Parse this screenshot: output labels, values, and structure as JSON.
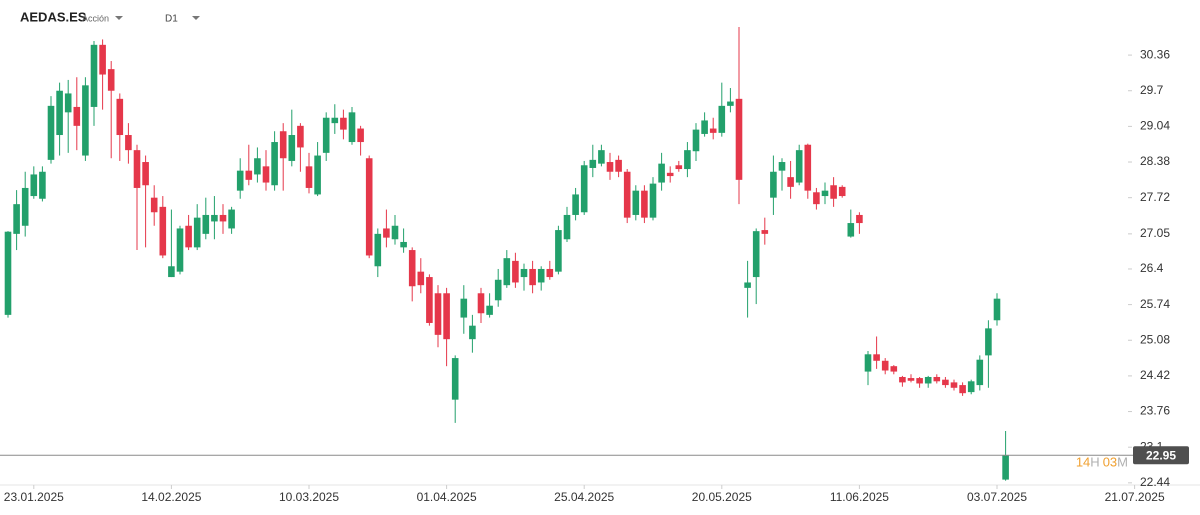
{
  "chart_data": {
    "type": "candlestick",
    "symbol": "AEDAS.ES",
    "instrument_type": "Acción",
    "timeframe": "D1",
    "countdown": [
      "14",
      "H",
      "03",
      "M"
    ],
    "last_price": 22.95,
    "up_color": "#22a06b",
    "down_color": "#e5374a",
    "categories": [
      null,
      null,
      null,
      "23.01.2025",
      null,
      null,
      null,
      null,
      null,
      null,
      null,
      null,
      null,
      null,
      null,
      null,
      null,
      null,
      null,
      "14.02.2025",
      null,
      null,
      null,
      null,
      null,
      null,
      null,
      null,
      null,
      null,
      null,
      null,
      null,
      null,
      null,
      "10.03.2025",
      null,
      null,
      null,
      null,
      null,
      null,
      null,
      null,
      null,
      null,
      null,
      null,
      null,
      null,
      null,
      "01.04.2025",
      null,
      null,
      null,
      null,
      null,
      null,
      null,
      null,
      null,
      null,
      null,
      null,
      null,
      null,
      null,
      "25.04.2025",
      null,
      null,
      null,
      null,
      null,
      null,
      null,
      null,
      null,
      null,
      null,
      null,
      null,
      null,
      null,
      "20.05.2025",
      null,
      null,
      null,
      null,
      null,
      null,
      null,
      null,
      null,
      null,
      null,
      null,
      null,
      null,
      null,
      "11.06.2025",
      null,
      null,
      null,
      null,
      null,
      null,
      null,
      null,
      null,
      null,
      null,
      null,
      null,
      null,
      null,
      "03.07.2025",
      null,
      null,
      null,
      null,
      null,
      null,
      null,
      null,
      null,
      null,
      null,
      null,
      null,
      null,
      null,
      "21.07.2025"
    ],
    "open": [
      25.55,
      27.05,
      27.2,
      27.75,
      27.7,
      28.42,
      28.88,
      29.3,
      29.4,
      28.5,
      29.4,
      30.55,
      30.1,
      29.55,
      28.88,
      28.6,
      28.38,
      27.72,
      27.55,
      26.25,
      26.35,
      27.2,
      26.8,
      27.05,
      27.28,
      27.4,
      27.15,
      27.85,
      28.22,
      28.15,
      28.3,
      27.95,
      28.95,
      28.4,
      29.05,
      28.3,
      27.78,
      28.55,
      29.1,
      29.2,
      28.75,
      29.0,
      28.45,
      26.45,
      27.15,
      26.95,
      26.8,
      26.75,
      26.35,
      26.25,
      25.95,
      25.95,
      23.98,
      25.5,
      25.1,
      25.95,
      25.55,
      25.82,
      26.1,
      26.55,
      26.25,
      26.4,
      26.15,
      26.4,
      26.35,
      26.95,
      27.4,
      27.45,
      28.27,
      28.35,
      28.38,
      28.42,
      28.2,
      27.4,
      27.85,
      27.35,
      28.0,
      28.18,
      28.32,
      28.25,
      28.58,
      28.9,
      29.0,
      28.92,
      29.42,
      29.55,
      26.05,
      26.25,
      27.12,
      27.72,
      28.22,
      28.1,
      28.0,
      28.7,
      27.82,
      27.75,
      27.95,
      27.92,
      27.0,
      27.4,
      24.5,
      24.82,
      24.7,
      24.6,
      24.4,
      24.38,
      24.38,
      24.28,
      24.4,
      24.35,
      24.3,
      24.25,
      24.12,
      24.25,
      24.8,
      25.45,
      22.5,
      null,
      null,
      null,
      null,
      null,
      null,
      null,
      null,
      null,
      null,
      null,
      null,
      null,
      null,
      null
    ],
    "high": [
      27.1,
      27.86,
      28.2,
      28.3,
      28.3,
      29.6,
      29.85,
      29.9,
      29.95,
      29.95,
      30.62,
      30.65,
      30.25,
      29.65,
      29.1,
      28.7,
      28.5,
      27.95,
      27.75,
      27.5,
      27.2,
      27.4,
      27.6,
      27.72,
      27.75,
      27.6,
      27.55,
      28.45,
      28.7,
      28.65,
      28.6,
      28.95,
      29.1,
      29.35,
      29.1,
      28.55,
      28.75,
      29.3,
      29.45,
      29.35,
      29.4,
      29.05,
      28.5,
      27.15,
      27.5,
      27.4,
      27.15,
      26.8,
      26.6,
      26.3,
      26.1,
      26.05,
      24.8,
      26.1,
      25.55,
      26.05,
      25.95,
      26.4,
      26.75,
      26.7,
      26.5,
      26.55,
      26.45,
      26.55,
      27.2,
      27.55,
      27.9,
      28.4,
      28.7,
      28.7,
      28.55,
      28.5,
      28.25,
      27.95,
      27.95,
      28.1,
      28.55,
      28.3,
      28.4,
      28.75,
      29.1,
      29.3,
      29.2,
      29.85,
      29.75,
      30.88,
      26.55,
      27.15,
      27.35,
      28.5,
      28.45,
      28.4,
      28.7,
      28.72,
      27.9,
      28.0,
      28.1,
      27.95,
      27.5,
      27.45,
      24.88,
      25.15,
      24.75,
      24.62,
      24.42,
      24.45,
      24.4,
      24.42,
      24.45,
      24.4,
      24.35,
      24.3,
      24.35,
      24.8,
      25.45,
      25.95,
      23.4,
      null,
      null,
      null,
      null,
      null,
      null,
      null,
      null,
      null,
      null,
      null,
      null,
      null,
      null,
      null
    ],
    "low": [
      25.5,
      26.75,
      27.0,
      27.7,
      27.65,
      28.35,
      28.5,
      28.55,
      28.6,
      28.4,
      29.05,
      29.35,
      28.45,
      28.4,
      28.35,
      26.75,
      26.8,
      27.2,
      26.6,
      26.25,
      26.3,
      26.75,
      26.75,
      26.95,
      26.95,
      27.05,
      27.05,
      27.7,
      27.95,
      28.0,
      27.85,
      27.85,
      27.85,
      28.3,
      28.2,
      27.8,
      27.75,
      28.4,
      28.9,
      28.8,
      28.7,
      28.5,
      26.6,
      26.25,
      26.8,
      26.85,
      26.7,
      25.8,
      25.95,
      25.35,
      24.95,
      24.6,
      23.55,
      25.2,
      24.85,
      25.4,
      25.5,
      25.7,
      26.05,
      26.05,
      26.0,
      25.95,
      26.0,
      26.2,
      26.3,
      26.9,
      27.3,
      27.4,
      28.1,
      28.3,
      28.05,
      28.1,
      27.25,
      27.3,
      27.25,
      27.3,
      27.85,
      28.0,
      28.2,
      28.1,
      28.4,
      28.85,
      28.8,
      28.85,
      29.3,
      27.6,
      25.5,
      25.75,
      26.85,
      27.4,
      27.85,
      27.7,
      27.95,
      27.7,
      27.5,
      27.6,
      27.55,
      27.72,
      26.98,
      27.05,
      24.25,
      24.55,
      24.45,
      24.45,
      24.22,
      24.3,
      24.2,
      24.2,
      24.28,
      24.2,
      24.15,
      24.05,
      24.08,
      24.15,
      24.2,
      25.35,
      22.48,
      null,
      null,
      null,
      null,
      null,
      null,
      null,
      null,
      null,
      null,
      null,
      null,
      null,
      null,
      null
    ],
    "close": [
      27.09,
      27.6,
      27.9,
      28.15,
      28.2,
      29.42,
      29.7,
      29.65,
      29.05,
      29.8,
      30.55,
      30.0,
      29.7,
      28.88,
      28.6,
      27.9,
      27.95,
      27.45,
      26.65,
      26.45,
      27.15,
      26.8,
      27.35,
      27.4,
      27.4,
      27.28,
      27.5,
      28.22,
      28.05,
      28.45,
      28.0,
      28.75,
      28.45,
      28.88,
      28.65,
      27.9,
      28.5,
      29.2,
      29.2,
      28.98,
      29.3,
      28.75,
      26.65,
      27.05,
      26.98,
      27.2,
      26.9,
      26.08,
      26.1,
      25.4,
      25.18,
      25.1,
      24.75,
      25.85,
      25.35,
      25.58,
      25.72,
      26.2,
      26.6,
      26.15,
      26.4,
      26.1,
      26.4,
      26.25,
      27.12,
      27.4,
      27.78,
      28.32,
      28.42,
      28.6,
      28.2,
      28.2,
      27.35,
      27.85,
      27.35,
      27.98,
      28.35,
      28.12,
      28.25,
      28.6,
      28.98,
      29.15,
      28.92,
      29.42,
      29.5,
      28.05,
      26.15,
      27.1,
      27.05,
      28.2,
      28.38,
      27.92,
      28.6,
      27.85,
      27.6,
      27.85,
      27.7,
      27.75,
      27.25,
      27.25,
      24.82,
      24.7,
      24.52,
      24.5,
      24.3,
      24.33,
      24.28,
      24.4,
      24.32,
      24.25,
      24.2,
      24.1,
      24.32,
      24.72,
      25.3,
      25.85,
      22.95,
      null,
      null,
      null,
      null,
      null,
      null,
      null,
      null,
      null,
      null,
      null,
      null,
      null,
      null,
      null
    ],
    "ylim": [
      22.4,
      31.38
    ],
    "yticks": [
      22.44,
      23.1,
      23.76,
      24.42,
      25.08,
      25.74,
      26.4,
      27.05,
      27.72,
      28.38,
      29.04,
      29.7,
      30.36
    ]
  }
}
